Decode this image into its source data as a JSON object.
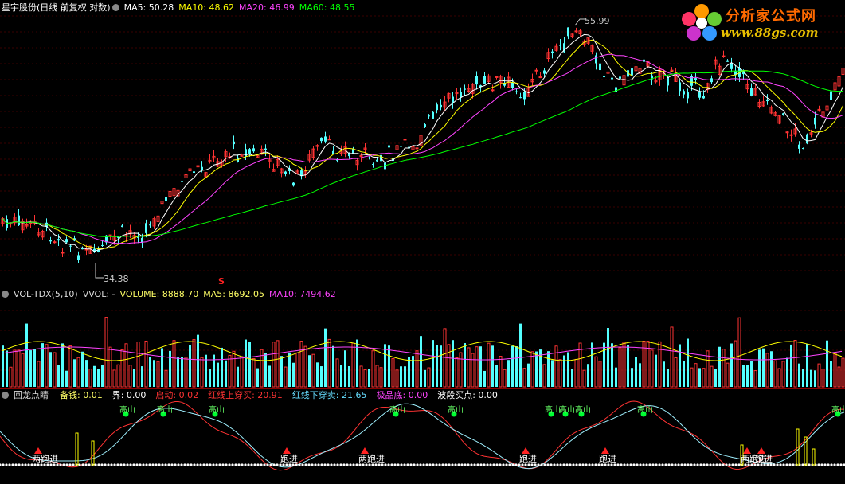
{
  "main": {
    "stock_name": "星宇股份(日线 前复权 对数)",
    "ma": [
      {
        "label": "MA5: 50.28",
        "color": "#ffffff"
      },
      {
        "label": "MA10: 48.62",
        "color": "#ffff00"
      },
      {
        "label": "MA20: 46.99",
        "color": "#ff44ff"
      },
      {
        "label": "MA60: 48.55",
        "color": "#00ff00"
      }
    ],
    "high_label": "55.99",
    "low_label": "34.38",
    "marker_label": "S"
  },
  "volume": {
    "title": "VOL-TDX(5,10)",
    "vvol": "VVOL: -",
    "volume": "VOLUME: 8888.70",
    "ma5": "MA5: 8692.05",
    "ma10": "MA10: 7494.62"
  },
  "indicator": {
    "title": "回龙点睛",
    "items": [
      {
        "label": "备钱: 0.01",
        "color": "#ffff66"
      },
      {
        "label": "界: 0.00",
        "color": "#ffffff"
      },
      {
        "label": "启动: 0.02",
        "color": "#ff3333"
      },
      {
        "label": "红线上穿买: 20.91",
        "color": "#ff3333"
      },
      {
        "label": "红线下穿卖: 21.65",
        "color": "#66ddff"
      },
      {
        "label": "极品底: 0.00",
        "color": "#ff44ff"
      },
      {
        "label": "波段买点: 0.00",
        "color": "#ffffff"
      }
    ],
    "top_label": "高山",
    "buy_label": "跑进",
    "buy_labels_variants": [
      "两跑进",
      "跑进",
      "两跑进",
      "跑进",
      "跑进",
      "跑进",
      "两跑进"
    ]
  },
  "logo": {
    "title": "分析家公式网",
    "url": "www.88gs.com"
  }
}
